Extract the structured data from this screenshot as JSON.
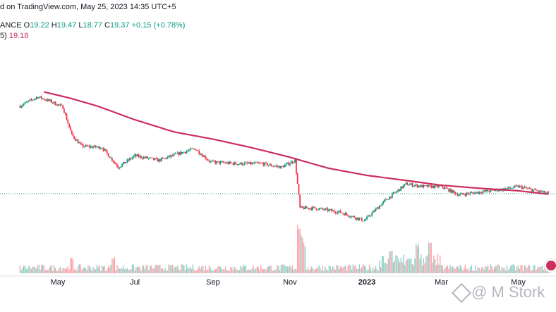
{
  "header": {
    "published": "d on TradingView.com, May 25, 2023 14:35 UTC+5"
  },
  "legend": {
    "symbol_fragment": "ANCE",
    "o_label": "O",
    "o_value": "19.22",
    "h_label": "H",
    "h_value": "19.47",
    "l_label": "L",
    "l_value": "18.77",
    "c_label": "C",
    "c_value": "19.37",
    "change": "+0.15 (+0.78%)",
    "indicator_fragment": "5)",
    "indicator_value": "19.18"
  },
  "watermark": {
    "text": "@ M Stork",
    "logo": "binance-square-logo"
  },
  "colors": {
    "up": "#089981",
    "down": "#f23645",
    "ma": "#cc2f5c",
    "up_volume": "rgba(8,153,129,0.45)",
    "down_volume": "rgba(242,54,69,0.45)",
    "last_price_line": "#089981",
    "axis_text": "#131722"
  },
  "chart_data": {
    "type": "candlestick",
    "x_tick_labels": [
      "May",
      "Jul",
      "Sep",
      "Nov",
      "2023",
      "Mar",
      "May"
    ],
    "last_price": 19.37,
    "price_anchors": [
      {
        "date": "2022-04-01",
        "close": 92
      },
      {
        "date": "2022-04-15",
        "close": 108
      },
      {
        "date": "2022-04-25",
        "close": 100
      },
      {
        "date": "2022-05-05",
        "close": 90
      },
      {
        "date": "2022-05-12",
        "close": 55
      },
      {
        "date": "2022-05-20",
        "close": 45
      },
      {
        "date": "2022-06-05",
        "close": 44
      },
      {
        "date": "2022-06-18",
        "close": 31
      },
      {
        "date": "2022-07-01",
        "close": 38
      },
      {
        "date": "2022-07-20",
        "close": 35
      },
      {
        "date": "2022-08-10",
        "close": 41
      },
      {
        "date": "2022-08-18",
        "close": 43
      },
      {
        "date": "2022-08-30",
        "close": 34
      },
      {
        "date": "2022-09-20",
        "close": 33
      },
      {
        "date": "2022-10-10",
        "close": 33
      },
      {
        "date": "2022-10-25",
        "close": 31
      },
      {
        "date": "2022-11-05",
        "close": 35
      },
      {
        "date": "2022-11-09",
        "close": 15
      },
      {
        "date": "2022-11-20",
        "close": 15
      },
      {
        "date": "2022-12-10",
        "close": 14
      },
      {
        "date": "2022-12-30",
        "close": 12
      },
      {
        "date": "2023-01-15",
        "close": 17
      },
      {
        "date": "2023-02-01",
        "close": 23
      },
      {
        "date": "2023-02-15",
        "close": 22
      },
      {
        "date": "2023-03-01",
        "close": 22
      },
      {
        "date": "2023-03-15",
        "close": 19
      },
      {
        "date": "2023-04-01",
        "close": 20
      },
      {
        "date": "2023-04-20",
        "close": 21
      },
      {
        "date": "2023-05-01",
        "close": 22
      },
      {
        "date": "2023-05-25",
        "close": 19.37
      }
    ],
    "moving_average_anchors": [
      {
        "date": "2022-04-20",
        "value": 118
      },
      {
        "date": "2022-05-10",
        "value": 106
      },
      {
        "date": "2022-06-01",
        "value": 92
      },
      {
        "date": "2022-07-01",
        "value": 72
      },
      {
        "date": "2022-08-01",
        "value": 58
      },
      {
        "date": "2022-09-01",
        "value": 51
      },
      {
        "date": "2022-10-01",
        "value": 44
      },
      {
        "date": "2022-11-01",
        "value": 37
      },
      {
        "date": "2022-12-01",
        "value": 30.5
      },
      {
        "date": "2023-01-01",
        "value": 26.8
      },
      {
        "date": "2023-02-01",
        "value": 24.5
      },
      {
        "date": "2023-03-01",
        "value": 22.5
      },
      {
        "date": "2023-04-01",
        "value": 21.3
      },
      {
        "date": "2023-05-01",
        "value": 20.4
      },
      {
        "date": "2023-05-25",
        "value": 19.18
      }
    ],
    "volume_spikes": [
      {
        "date": "2022-11-08",
        "level": 0.95
      },
      {
        "date": "2022-11-10",
        "level": 0.75
      },
      {
        "date": "2022-11-12",
        "level": 0.55
      },
      {
        "date": "2023-01-20",
        "level": 0.45
      },
      {
        "date": "2023-02-10",
        "level": 0.55
      },
      {
        "date": "2023-02-20",
        "level": 0.6
      },
      {
        "date": "2022-06-14",
        "level": 0.3
      },
      {
        "date": "2022-05-12",
        "level": 0.28
      }
    ]
  }
}
